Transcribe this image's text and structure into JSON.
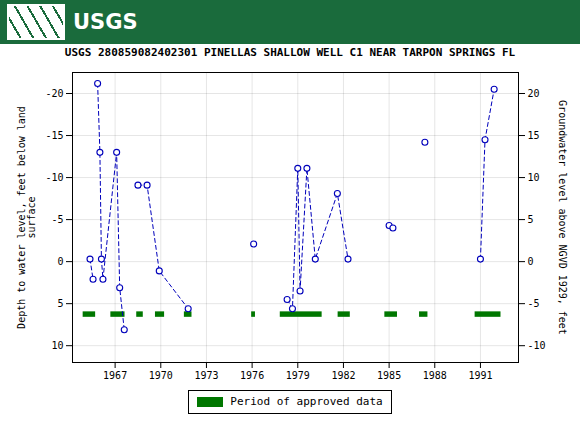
{
  "chart_data": {
    "type": "line",
    "header": "USGS",
    "header_color": "#1a6b3c",
    "title": "USGS 280859082402301 PINELLAS SHALLOW WELL C1 NEAR TARPON SPRINGS FL",
    "ylabel": "Depth to water level, feet below land\nsurface",
    "y2label": "Groundwater level above NGVD 1929, feet",
    "xlim": [
      1964.2,
      1993.5
    ],
    "xticks": [
      1967,
      1970,
      1973,
      1976,
      1979,
      1982,
      1985,
      1988,
      1991
    ],
    "ylim": [
      12,
      -22.5
    ],
    "yticks": [
      10,
      5,
      0,
      -5,
      -10,
      -15,
      -20
    ],
    "y2lim": [
      -12,
      22.5
    ],
    "y2ticks": [
      -10,
      -5,
      0,
      5,
      10,
      15,
      20
    ],
    "grid": true,
    "legend": "bottom",
    "series": [
      {
        "type": "line",
        "color": "#0000bb",
        "line_style": "dashed",
        "marker": "circle",
        "x": [
          1965.35,
          1965.55
        ],
        "values": [
          -0.3,
          2.1
        ]
      },
      {
        "type": "line",
        "color": "#0000bb",
        "line_style": "dashed",
        "marker": "circle",
        "x": [
          1965.85,
          1966.0,
          1966.1,
          1966.2,
          1967.1,
          1967.3,
          1967.6
        ],
        "values": [
          -21.2,
          -13.0,
          -0.3,
          2.1,
          -13.0,
          3.1,
          8.1
        ]
      },
      {
        "type": "line",
        "color": "#0000bb",
        "line_style": "dashed",
        "marker": "circle",
        "x": [
          1968.5,
          1969.1,
          1969.9,
          1971.8
        ],
        "values": [
          -9.1,
          -9.1,
          1.1,
          5.6
        ]
      },
      {
        "type": "line",
        "color": "#0000bb",
        "line_style": "dashed",
        "marker": "circle",
        "x": [
          1978.3,
          1978.65,
          1979.0,
          1979.15,
          1979.6,
          1980.15,
          1981.6,
          1982.3
        ],
        "values": [
          4.5,
          5.6,
          -11.1,
          3.5,
          -11.1,
          -0.3,
          -8.1,
          -0.3
        ]
      },
      {
        "type": "line",
        "color": "#0000bb",
        "line_style": "dashed",
        "marker": "circle",
        "x": [
          1985.0,
          1985.25
        ],
        "values": [
          -4.3,
          -4.0
        ]
      },
      {
        "type": "line",
        "color": "#0000bb",
        "line_style": "dashed",
        "marker": "circle",
        "x": [
          1991.0,
          1991.3,
          1991.9
        ],
        "values": [
          -0.3,
          -14.5,
          -20.5
        ]
      },
      {
        "type": "scatter",
        "color": "#0000bb",
        "marker": "circle",
        "x": [
          1976.1,
          1987.35
        ],
        "values": [
          -2.1,
          -14.2
        ]
      },
      {
        "name": "Period of approved data",
        "type": "bar",
        "orientation": "horizontal",
        "color": "#007700",
        "y": 6.3,
        "height": 0.65,
        "starts": [
          1964.9,
          1966.72,
          1968.42,
          1969.65,
          1971.55,
          1975.97,
          1977.85,
          1981.65,
          1984.72,
          1987.0,
          1990.65
        ],
        "ends": [
          1965.72,
          1967.65,
          1968.85,
          1970.25,
          1972.05,
          1976.22,
          1980.6,
          1982.45,
          1985.55,
          1987.55,
          1992.35
        ]
      }
    ]
  }
}
